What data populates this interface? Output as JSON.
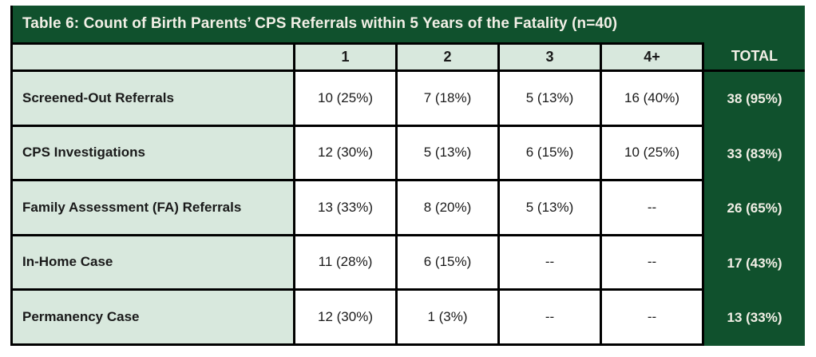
{
  "table": {
    "title": "Table 6: Count of Birth Parents’ CPS Referrals within 5 Years of the Fatality (n=40)",
    "column_headers": [
      "",
      "1",
      "2",
      "3",
      "4+",
      "TOTAL"
    ],
    "rows": [
      {
        "label": "Screened-Out Referrals",
        "cells": [
          "10 (25%)",
          "7 (18%)",
          "5 (13%)",
          "16 (40%)"
        ],
        "total": "38 (95%)"
      },
      {
        "label": "CPS Investigations",
        "cells": [
          "12 (30%)",
          "5 (13%)",
          "6 (15%)",
          "10 (25%)"
        ],
        "total": "33 (83%)"
      },
      {
        "label": "Family Assessment (FA) Referrals",
        "cells": [
          "13 (33%)",
          "8 (20%)",
          "5 (13%)",
          "--"
        ],
        "total": "26 (65%)"
      },
      {
        "label": "In-Home Case",
        "cells": [
          "11 (28%)",
          "6 (15%)",
          "--",
          "--"
        ],
        "total": "17 (43%)"
      },
      {
        "label": "Permanency Case",
        "cells": [
          "12 (30%)",
          "1 (3%)",
          "--",
          "--"
        ],
        "total": "13 (33%)"
      }
    ]
  },
  "colors": {
    "dark_green": "#10512D",
    "light_green": "#D8E8DD",
    "title_text": "#F2EFE6",
    "cell_text": "#1A1A1A",
    "border_black": "#000000"
  }
}
